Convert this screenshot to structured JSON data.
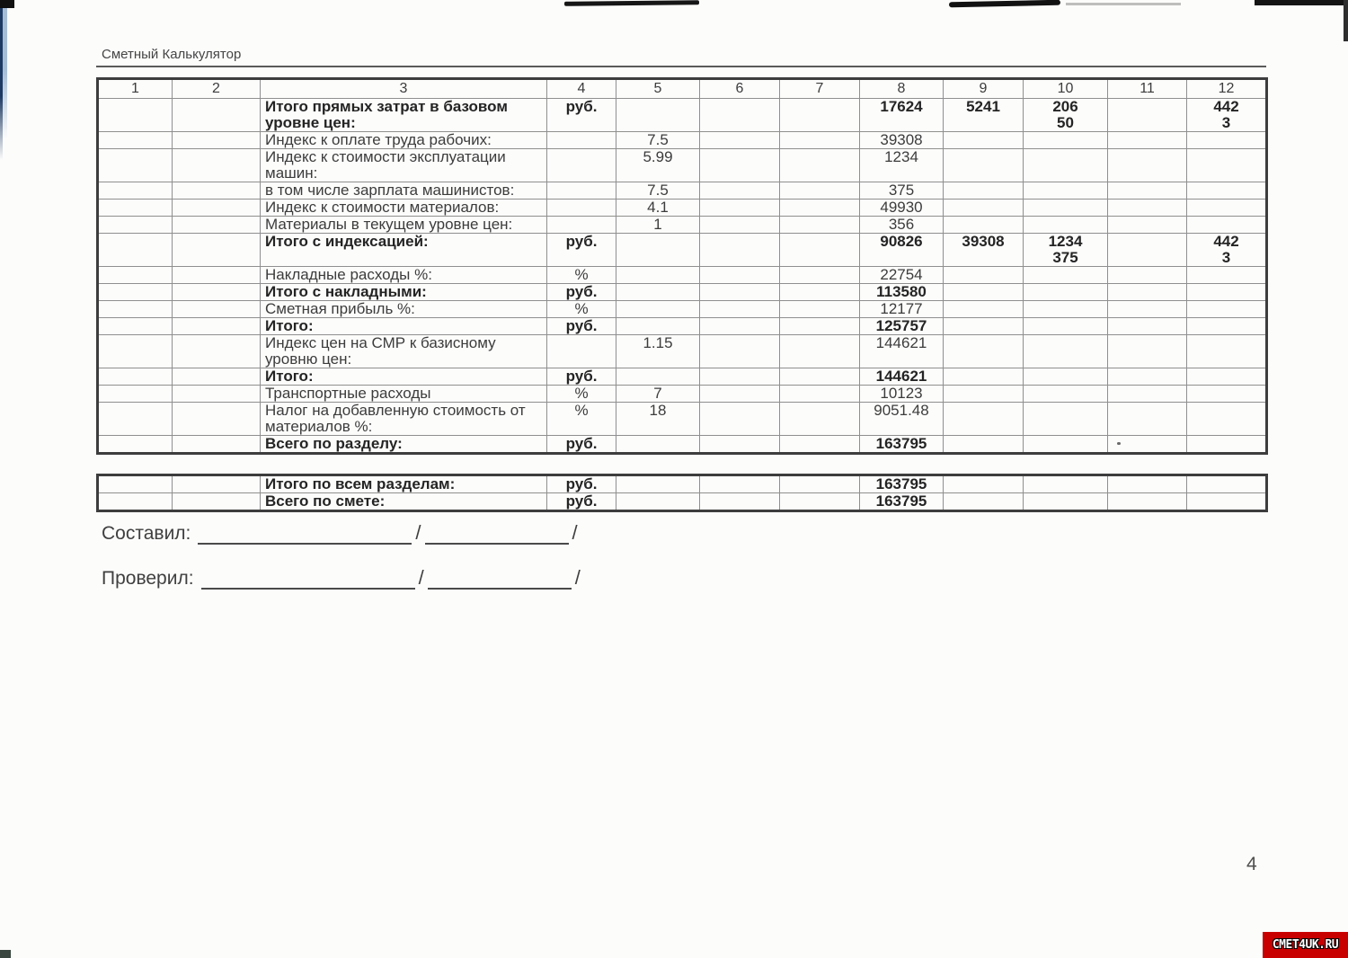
{
  "document": {
    "title": "Сметный Калькулятор",
    "page_number": "4",
    "watermark_text": "CMET4UK.RU"
  },
  "colors": {
    "watermark_bg": "#c80000",
    "watermark_text": "#ffffff",
    "scan_strip_blue": "#1c3a63"
  },
  "main_table": {
    "column_headers": [
      "1",
      "2",
      "3",
      "4",
      "5",
      "6",
      "7",
      "8",
      "9",
      "10",
      "11",
      "12"
    ],
    "rows": [
      {
        "label": "Итого прямых затрат в базовом уровне цен:",
        "unit": "руб.",
        "c8": "17624",
        "c9": "5241",
        "c10": "206\n50",
        "c12": "442\n3",
        "bold": true
      },
      {
        "label": "Индекс к оплате труда рабочих:",
        "c5": "7.5",
        "c8": "39308"
      },
      {
        "label": "Индекс к стоимости эксплуатации машин:",
        "c5": "5.99",
        "c8": "1234"
      },
      {
        "label": "в том числе зарплата машинистов:",
        "c5": "7.5",
        "c8": "375"
      },
      {
        "label": "Индекс к стоимости материалов:",
        "c5": "4.1",
        "c8": "49930"
      },
      {
        "label": "Материалы в текущем уровне цен:",
        "c5": "1",
        "c8": "356"
      },
      {
        "label": "Итого с индексацией:",
        "unit": "руб.",
        "c8": "90826",
        "c9": "39308",
        "c10": "1234\n375",
        "c12": "442\n3",
        "bold": true
      },
      {
        "label": "Накладные расходы %:",
        "unit": "%",
        "c8": "22754"
      },
      {
        "label": "Итого с накладными:",
        "unit": "руб.",
        "c8": "113580",
        "bold": true
      },
      {
        "label": "Сметная прибыль %:",
        "unit": "%",
        "c8": "12177"
      },
      {
        "label": "Итого:",
        "unit": "руб.",
        "c8": "125757",
        "bold": true
      },
      {
        "label": "Индекс цен на СМР к базисному уровню цен:",
        "c5": "1.15",
        "c8": "144621"
      },
      {
        "label": "Итого:",
        "unit": "руб.",
        "c8": "144621",
        "bold": true
      },
      {
        "label": "Транспортные расходы",
        "unit": "%",
        "c5": "7",
        "c8": "10123"
      },
      {
        "label": "Налог на добавленную стоимость от материалов %:",
        "unit": "%",
        "c5": "18",
        "c8": "9051.48"
      },
      {
        "label": "Всего по разделу:",
        "unit": "руб.",
        "c8": "163795",
        "bold": true
      }
    ]
  },
  "summary_table": {
    "rows": [
      {
        "label": "Итого по всем разделам:",
        "unit": "руб.",
        "c8": "163795",
        "bold": true
      },
      {
        "label": "Всего по смете:",
        "unit": "руб.",
        "c8": "163795",
        "bold": true
      }
    ]
  },
  "signatures": {
    "slash": "/",
    "rows": [
      {
        "label": "Составил:"
      },
      {
        "label": "Проверил:"
      }
    ]
  }
}
